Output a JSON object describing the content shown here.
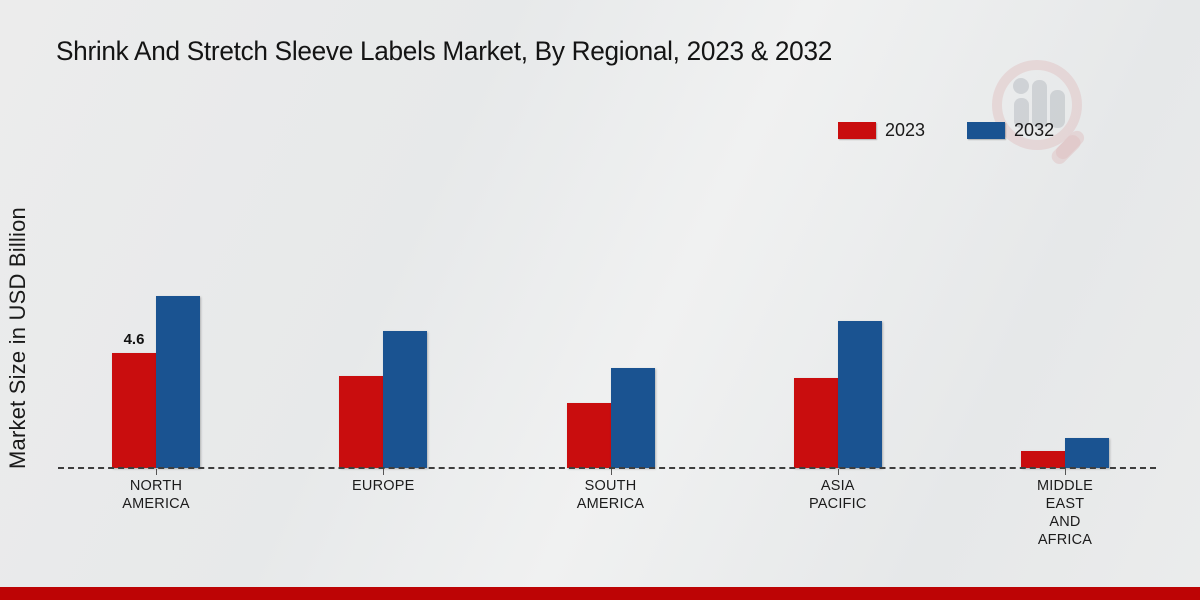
{
  "title": "Shrink And Stretch Sleeve Labels Market, By Regional, 2023 & 2032",
  "y_axis_label": "Market Size in USD Billion",
  "legend": {
    "items": [
      {
        "label": "2023",
        "color": "#c90d0e"
      },
      {
        "label": "2032",
        "color": "#1a5391"
      }
    ]
  },
  "colors": {
    "series_2023": "#c90d0e",
    "series_2032": "#1a5391",
    "footer_band": "#bd0405",
    "baseline": "#3d3d3d",
    "background": "#e9eaea"
  },
  "footer": {
    "band_color": "#bd0405"
  },
  "watermark_icon": "magnifier-bar-chart-logo",
  "chart_data": {
    "type": "bar",
    "title": "Shrink And Stretch Sleeve Labels Market, By Regional, 2023 & 2032",
    "xlabel": "",
    "ylabel": "Market Size in USD Billion",
    "categories_plain": [
      "North America",
      "Europe",
      "South America",
      "Asia Pacific",
      "Middle East and Africa"
    ],
    "categories": [
      "NORTH\nAMERICA",
      "EUROPE",
      "SOUTH\nAMERICA",
      "ASIA\nPACIFIC",
      "MIDDLE\nEAST\nAND\nAFRICA"
    ],
    "series": [
      {
        "name": "2023",
        "color": "#c90d0e",
        "values": [
          4.6,
          3.7,
          2.6,
          3.6,
          0.7
        ]
      },
      {
        "name": "2032",
        "color": "#1a5391",
        "values": [
          6.9,
          5.5,
          4.0,
          5.9,
          1.2
        ]
      }
    ],
    "value_labels": [
      {
        "series_index": 0,
        "category_index": 0,
        "text": "4.6"
      }
    ],
    "ylim": [
      0,
      8
    ],
    "grid": false,
    "legend_position": "top-right",
    "x_axis_style": "dashed-baseline"
  }
}
